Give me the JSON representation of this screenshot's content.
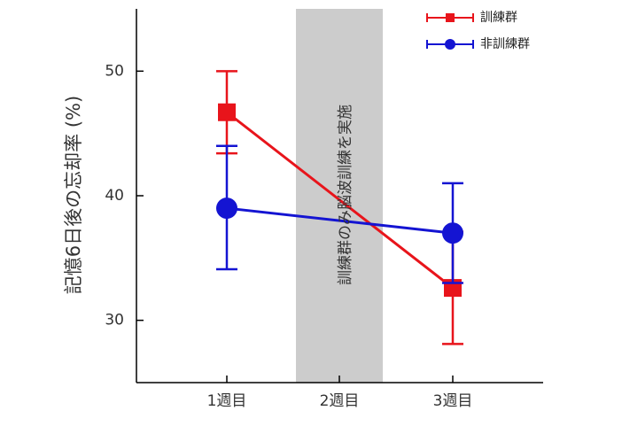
{
  "chart_data": {
    "type": "line",
    "categories": [
      "1週目",
      "2週目",
      "3週目"
    ],
    "ylabel": "記憶6日後の忘却率 (%)",
    "ylim": [
      25,
      55
    ],
    "yticks": [
      30,
      40,
      50
    ],
    "grid": false,
    "legend_position": "top-right",
    "shaded_region": {
      "category": "2週目",
      "label": "訓練群のみ脳波訓練を実施",
      "color": "#cccccc"
    },
    "series": [
      {
        "name": "訓練群",
        "color": "#e8141b",
        "marker": "square",
        "points": [
          {
            "category": "1週目",
            "y": 46.7,
            "err_low": 43.4,
            "err_high": 50.0
          },
          {
            "category": "3週目",
            "y": 32.6,
            "err_low": 28.1,
            "err_high": 37.1
          }
        ]
      },
      {
        "name": "非訓練群",
        "color": "#1414d2",
        "marker": "circle",
        "points": [
          {
            "category": "1週目",
            "y": 39.0,
            "err_low": 34.1,
            "err_high": 44.0
          },
          {
            "category": "3週目",
            "y": 37.0,
            "err_low": 33.0,
            "err_high": 41.0
          }
        ]
      }
    ]
  }
}
